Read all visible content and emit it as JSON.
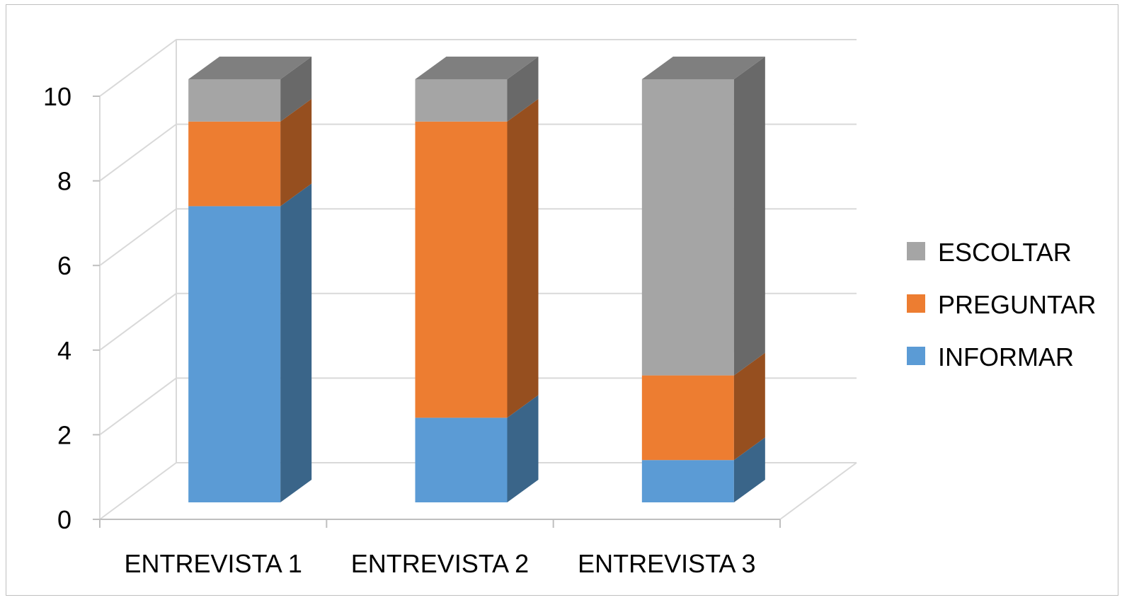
{
  "chart_data": {
    "type": "bar",
    "stacked": true,
    "three_d": true,
    "categories": [
      "ENTREVISTA 1",
      "ENTREVISTA 2",
      "ENTREVISTA 3"
    ],
    "series": [
      {
        "name": "INFORMAR",
        "values": [
          7,
          2,
          1
        ],
        "color": "#5b9bd5",
        "side_color": "#3a6589",
        "top_color": "#5b9bd5"
      },
      {
        "name": "PREGUNTAR",
        "values": [
          2,
          7,
          2
        ],
        "color": "#ed7d31",
        "side_color": "#964f1f",
        "top_color": "#ed7d31"
      },
      {
        "name": "ESCOLTAR",
        "values": [
          1,
          1,
          7
        ],
        "color": "#a5a5a5",
        "side_color": "#696969",
        "top_color": "#7f7f7f"
      }
    ],
    "yticks": [
      0,
      2,
      4,
      6,
      8,
      10
    ],
    "ylim": [
      0,
      10
    ],
    "grid": true,
    "legend": {
      "position": "right",
      "order": [
        "ESCOLTAR",
        "PREGUNTAR",
        "INFORMAR"
      ]
    }
  }
}
